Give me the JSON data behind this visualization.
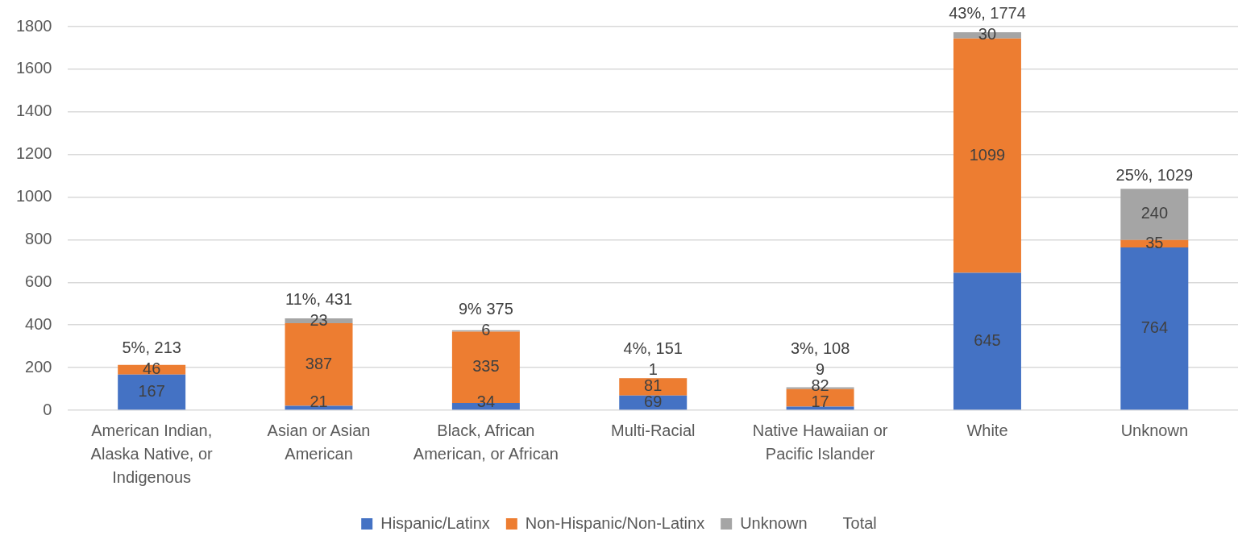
{
  "chart_data": {
    "type": "bar",
    "stacked": true,
    "categories": [
      "American Indian, Alaska Native, or Indigenous",
      "Asian or Asian American",
      "Black, African American, or African",
      "Multi-Racial",
      "Native Hawaiian or Pacific Islander",
      "White",
      "Unknown"
    ],
    "series": [
      {
        "name": "Hispanic/Latinx",
        "color": "#4472c4",
        "values": [
          167,
          21,
          34,
          69,
          17,
          645,
          764
        ]
      },
      {
        "name": "Non-Hispanic/Non-Latinx",
        "color": "#ed7d31",
        "values": [
          46,
          387,
          335,
          81,
          82,
          1099,
          35
        ]
      },
      {
        "name": "Unknown",
        "color": "#a5a5a5",
        "values": [
          null,
          23,
          6,
          1,
          9,
          30,
          240
        ]
      }
    ],
    "totals": [
      "5%, 213",
      "11%, 431",
      "9% 375",
      "4%, 151",
      "3%, 108",
      "43%, 1774",
      "25%, 1029"
    ],
    "data_labels": true,
    "ylim": [
      0,
      1800
    ],
    "yticks": [
      0,
      200,
      400,
      600,
      800,
      1000,
      1200,
      1400,
      1600,
      1800
    ],
    "grid": "y",
    "legend": "bottom",
    "annotations": [
      "Total"
    ]
  }
}
